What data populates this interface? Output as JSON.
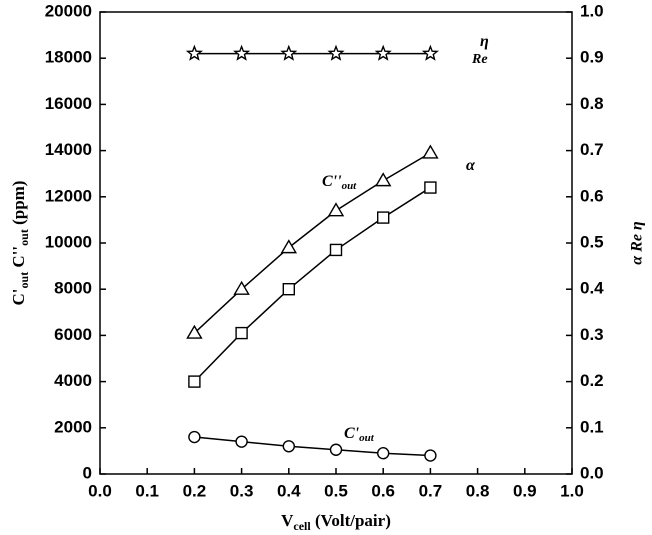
{
  "chart_data": {
    "type": "line",
    "x": [
      0.2,
      0.3,
      0.4,
      0.5,
      0.6,
      0.7
    ],
    "xlim": [
      0,
      1.0
    ],
    "xticks": [
      {
        "value": 0,
        "label": "0.0"
      },
      0.1,
      0.2,
      0.3,
      0.4,
      0.5,
      0.6,
      0.7,
      0.8,
      0.9,
      {
        "value": 1,
        "label": "1.0"
      }
    ],
    "ylim": [
      0,
      20000
    ],
    "yticks": [
      0,
      2000,
      4000,
      6000,
      8000,
      10000,
      12000,
      14000,
      16000,
      18000,
      20000
    ],
    "y2lim": [
      0,
      1.0
    ],
    "y2ticks": [
      {
        "value": 0,
        "label": "0.0"
      },
      0.1,
      0.2,
      0.3,
      0.4,
      0.5,
      0.6,
      0.7,
      0.8,
      0.9,
      {
        "value": 1,
        "label": "1.0"
      }
    ],
    "xlabel": [
      {
        "text": "V"
      },
      {
        "text": "cell",
        "sub": true
      },
      {
        "text": " (Volt/pair)"
      }
    ],
    "ylabel": [
      {
        "text": "C'"
      },
      {
        "text": "out",
        "sub": true
      },
      {
        "text": "   C''"
      },
      {
        "text": "out",
        "sub": true
      },
      {
        "text": " (ppm)"
      }
    ],
    "y2label": "α   Re   η",
    "series": [
      {
        "name": "C''",
        "name_sub": "out",
        "marker": "triangle",
        "color": "#000000",
        "values": [
          6100,
          8000,
          9800,
          11400,
          12700,
          13900
        ]
      },
      {
        "name": "α",
        "axis": "y2",
        "marker": "square",
        "color": "#000000",
        "values": [
          0.2,
          0.305,
          0.4,
          0.485,
          0.555,
          0.62
        ]
      },
      {
        "name": "C'",
        "name_sub": "out",
        "marker": "circle",
        "color": "#000000",
        "values": [
          1600,
          1400,
          1200,
          1050,
          900,
          800
        ]
      },
      {
        "name": "η",
        "name_sub": "Re",
        "axis": "y2",
        "marker": "star",
        "color": "#000000",
        "values": [
          0.91,
          0.91,
          0.91,
          0.91,
          0.91,
          0.91
        ]
      }
    ]
  }
}
